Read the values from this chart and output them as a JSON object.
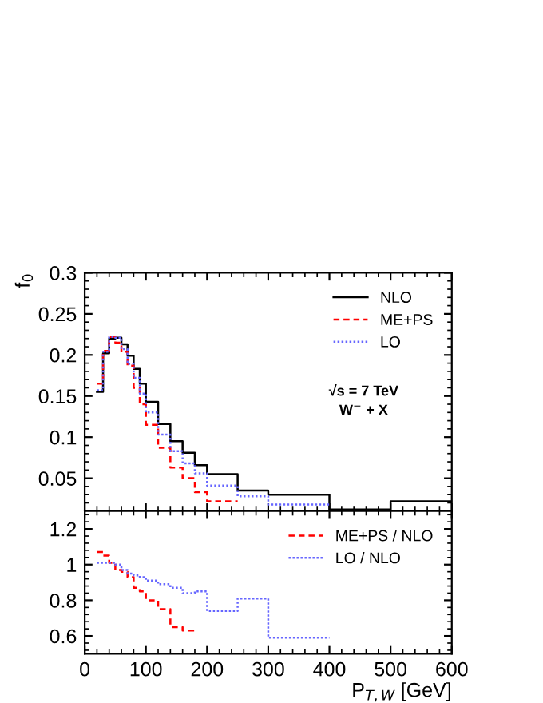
{
  "chart_data": [
    {
      "type": "step",
      "ylabel": "f$_{0}$",
      "annotations": [
        "√s = 7 TeV",
        "W$^{−}$ + X"
      ],
      "series": [
        {
          "name": "NLO",
          "color": "#000000",
          "line_style": "solid",
          "x": [
            20,
            30,
            40,
            50,
            60,
            70,
            80,
            90,
            100,
            120,
            140,
            160,
            180,
            200,
            250,
            300,
            400,
            500,
            600
          ],
          "values": [
            0.155,
            0.202,
            0.22,
            0.221,
            0.213,
            0.199,
            0.183,
            0.165,
            0.143,
            0.116,
            0.095,
            0.081,
            0.066,
            0.055,
            0.035,
            0.03,
            0.012,
            0.022,
            0.022
          ]
        },
        {
          "name": "ME+PS",
          "color": "#ff0000",
          "line_style": "dashed",
          "x": [
            20,
            30,
            40,
            50,
            60,
            70,
            80,
            90,
            100,
            120,
            140,
            160,
            180,
            200,
            250
          ],
          "values": [
            0.165,
            0.205,
            0.222,
            0.215,
            0.204,
            0.187,
            0.16,
            0.14,
            0.115,
            0.087,
            0.063,
            0.05,
            0.033,
            0.022,
            0.022
          ]
        },
        {
          "name": "LO",
          "color": "#6666ff",
          "line_style": "dotted",
          "x": [
            20,
            30,
            40,
            50,
            60,
            70,
            80,
            90,
            100,
            120,
            140,
            160,
            180,
            200,
            250,
            300,
            400
          ],
          "values": [
            0.157,
            0.204,
            0.222,
            0.221,
            0.207,
            0.189,
            0.172,
            0.153,
            0.13,
            0.103,
            0.083,
            0.068,
            0.056,
            0.041,
            0.028,
            0.018,
            0.018
          ]
        }
      ],
      "xlim": [
        0,
        600
      ],
      "xticks": [
        0,
        100,
        200,
        300,
        400,
        500,
        600
      ],
      "ylim": [
        0.01,
        0.3
      ],
      "yticks": [
        0.05,
        0.1,
        0.15,
        0.2,
        0.25,
        0.3
      ],
      "tick_labels": "y",
      "legend": "top right",
      "grid": false
    },
    {
      "type": "step",
      "xlabel": "P$_{T,W}$ [GeV]",
      "series": [
        {
          "name": "ME+PS / NLO",
          "color": "#ff0000",
          "line_style": "dashed",
          "x": [
            20,
            30,
            40,
            50,
            60,
            70,
            80,
            90,
            100,
            120,
            140,
            160,
            180
          ],
          "values": [
            1.07,
            1.05,
            1.01,
            0.97,
            0.96,
            0.93,
            0.87,
            0.85,
            0.8,
            0.75,
            0.65,
            0.63,
            0.63
          ]
        },
        {
          "name": "LO / NLO",
          "color": "#6666ff",
          "line_style": "dotted",
          "x": [
            20,
            30,
            40,
            50,
            60,
            70,
            80,
            90,
            100,
            120,
            140,
            160,
            180,
            200,
            250,
            300,
            400
          ],
          "values": [
            1.01,
            1.01,
            1.01,
            1.0,
            0.97,
            0.95,
            0.94,
            0.93,
            0.91,
            0.89,
            0.87,
            0.84,
            0.85,
            0.74,
            0.81,
            0.59,
            0.59
          ]
        }
      ],
      "xlim": [
        0,
        600
      ],
      "xticks": [
        0,
        100,
        200,
        300,
        400,
        500,
        600
      ],
      "ylim": [
        0.5,
        1.3
      ],
      "yticks": [
        0.6,
        0.8,
        1,
        1.2
      ],
      "legend": "top right",
      "grid": false
    }
  ]
}
